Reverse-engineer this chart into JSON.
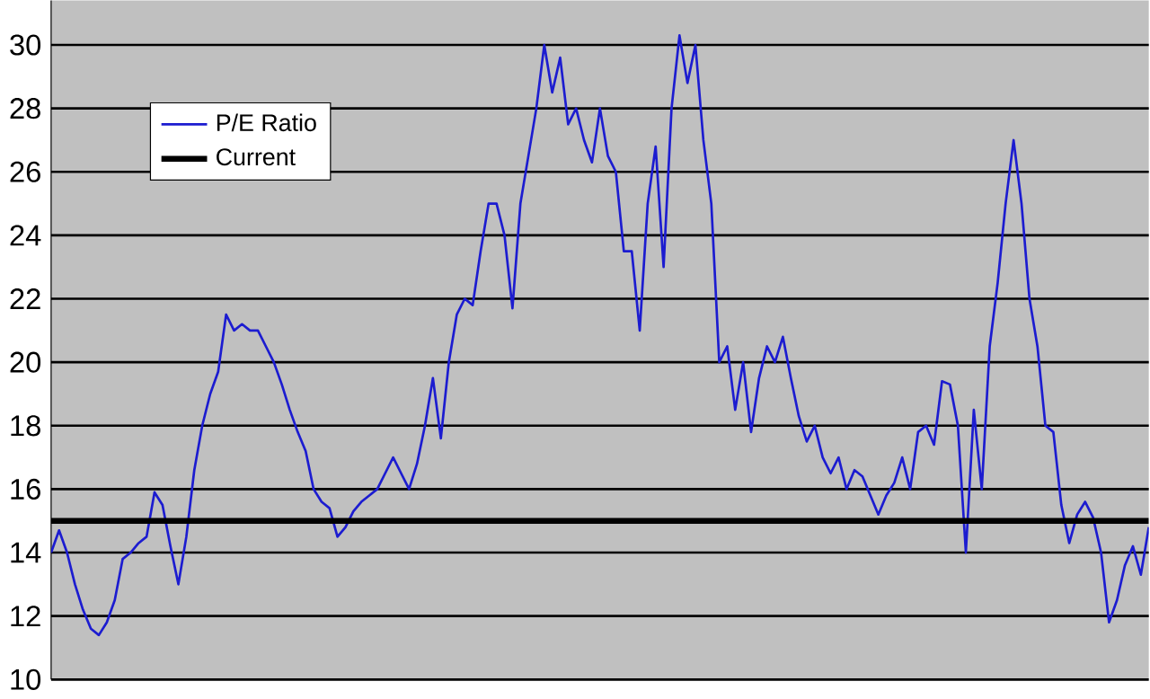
{
  "chart_data": {
    "type": "line",
    "categories": [
      null,
      null,
      null,
      null,
      null,
      null,
      null,
      null,
      null,
      null,
      null,
      null,
      null,
      null,
      null,
      null,
      null,
      null,
      null,
      null,
      null,
      null,
      null,
      null,
      null,
      null,
      null,
      null,
      null,
      null,
      null,
      null,
      null,
      null,
      null,
      null,
      null,
      null,
      null,
      null,
      null,
      null,
      null,
      null,
      null,
      null,
      null,
      null,
      null,
      null,
      null,
      null,
      null,
      null,
      null,
      null,
      null,
      null,
      null,
      null,
      null,
      null,
      null,
      null,
      null,
      null,
      null,
      null,
      null,
      null,
      null,
      null,
      null,
      null,
      null,
      null,
      null,
      null,
      null,
      null,
      null,
      null,
      null,
      null,
      null,
      null,
      null,
      null,
      null,
      null,
      null,
      null,
      null,
      null,
      null,
      null,
      null,
      null,
      null,
      null,
      null,
      null,
      null,
      null,
      null,
      null,
      null,
      null,
      null,
      null,
      null,
      null,
      null,
      null,
      null,
      null,
      null,
      null,
      null,
      null,
      null,
      null,
      null,
      null,
      null,
      null,
      null,
      null,
      null,
      null,
      null,
      null,
      null,
      null,
      null,
      null,
      null,
      null,
      null
    ],
    "series": [
      {
        "name": "P/E Ratio",
        "color": "#1c1cd0",
        "values": [
          14,
          14.7,
          14,
          13,
          12.2,
          11.6,
          11.4,
          11.8,
          12.5,
          13.8,
          14,
          14.3,
          14.5,
          15.9,
          15.5,
          14.2,
          13,
          14.5,
          16.6,
          18,
          19,
          19.7,
          21.5,
          21,
          21.2,
          21,
          21,
          20.5,
          20,
          19.3,
          18.5,
          17.8,
          17.2,
          16,
          15.6,
          15.4,
          14.5,
          14.8,
          15.3,
          15.6,
          15.8,
          16,
          16.5,
          17,
          16.5,
          16,
          16.8,
          18,
          19.5,
          17.6,
          20,
          21.5,
          22,
          21.8,
          23.5,
          25,
          25,
          24,
          21.7,
          25,
          26.5,
          28,
          30,
          28.5,
          29.6,
          27.5,
          28,
          27,
          26.3,
          28,
          26.5,
          26,
          23.5,
          23.5,
          21,
          25,
          26.8,
          23,
          28,
          30.3,
          28.8,
          30,
          27,
          25,
          20,
          20.5,
          18.5,
          20,
          17.8,
          19.5,
          20.5,
          20,
          20.8,
          19.5,
          18.3,
          17.5,
          18,
          17,
          16.5,
          17,
          16,
          16.6,
          16.4,
          15.8,
          15.2,
          15.8,
          16.2,
          17,
          16,
          17.8,
          18,
          17.4,
          19.4,
          19.3,
          18,
          14,
          18.5,
          16,
          20.5,
          22.5,
          25,
          27,
          25,
          22,
          20.5,
          18,
          17.8,
          15.5,
          14.3,
          15.2,
          15.6,
          15.1,
          14,
          11.8,
          12.5,
          13.6,
          14.2,
          13.3,
          14.8
        ]
      },
      {
        "name": "Current",
        "color": "#000000",
        "values": [
          15,
          15,
          15,
          15,
          15,
          15,
          15,
          15,
          15,
          15,
          15,
          15,
          15,
          15,
          15,
          15,
          15,
          15,
          15,
          15,
          15,
          15,
          15,
          15,
          15,
          15,
          15,
          15,
          15,
          15,
          15,
          15,
          15,
          15,
          15,
          15,
          15,
          15,
          15,
          15,
          15,
          15,
          15,
          15,
          15,
          15,
          15,
          15,
          15,
          15,
          15,
          15,
          15,
          15,
          15,
          15,
          15,
          15,
          15,
          15,
          15,
          15,
          15,
          15,
          15,
          15,
          15,
          15,
          15,
          15,
          15,
          15,
          15,
          15,
          15,
          15,
          15,
          15,
          15,
          15,
          15,
          15,
          15,
          15,
          15,
          15,
          15,
          15,
          15,
          15,
          15,
          15,
          15,
          15,
          15,
          15,
          15,
          15,
          15,
          15,
          15,
          15,
          15,
          15,
          15,
          15,
          15,
          15,
          15,
          15,
          15,
          15,
          15,
          15,
          15,
          15,
          15,
          15,
          15,
          15,
          15,
          15,
          15,
          15,
          15,
          15,
          15,
          15,
          15,
          15,
          15,
          15,
          15,
          15,
          15,
          15,
          15,
          15,
          15
        ]
      }
    ],
    "ylim": [
      10,
      31.4
    ],
    "yticks": [
      10,
      12,
      14,
      16,
      18,
      20,
      22,
      24,
      26,
      28,
      30
    ],
    "tick_labels": "y",
    "grid": "y",
    "legend": "top left"
  }
}
